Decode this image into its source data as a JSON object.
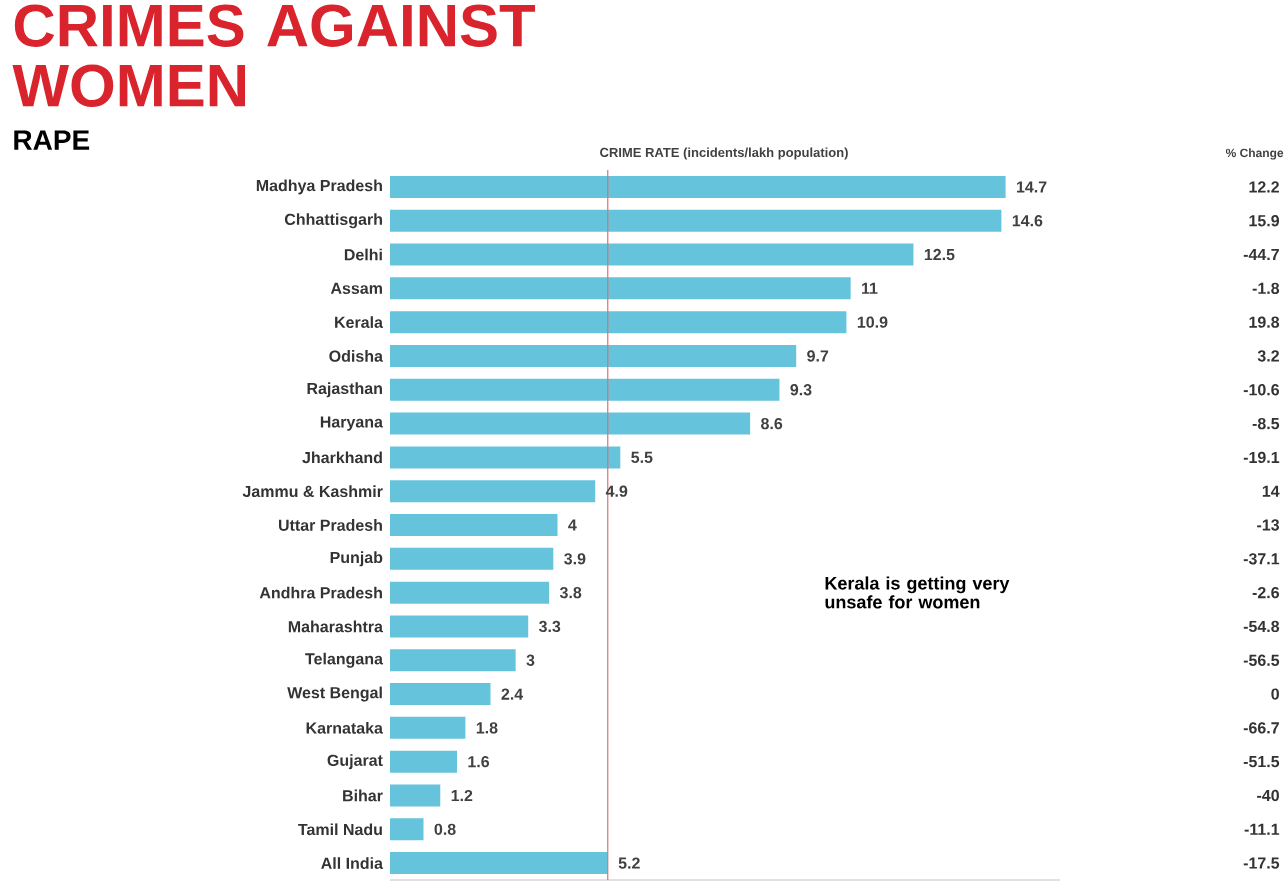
{
  "chart_data": {
    "type": "bar",
    "orientation": "horizontal",
    "title": "CRIMES AGAINST WOMEN",
    "subtitle": "RAPE",
    "xlabel": "CRIME RATE (incidents/lakh population)",
    "categories": [
      "Madhya Pradesh",
      "Chhattisgarh",
      "Delhi",
      "Assam",
      "Kerala",
      "Odisha",
      "Rajasthan",
      "Haryana",
      "Jharkhand",
      "Jammu & Kashmir",
      "Uttar Pradesh",
      "Punjab",
      "Andhra Pradesh",
      "Maharashtra",
      "Telangana",
      "West Bengal",
      "Karnataka",
      "Gujarat",
      "Bihar",
      "Tamil Nadu",
      "All India"
    ],
    "values": [
      14.7,
      14.6,
      12.5,
      11,
      10.9,
      9.7,
      9.3,
      8.6,
      5.5,
      4.9,
      4,
      3.9,
      3.8,
      3.3,
      3,
      2.4,
      1.8,
      1.6,
      1.2,
      0.8,
      5.2
    ],
    "color": "#66c3dc",
    "data_labels": true,
    "xlim": [
      0,
      16
    ],
    "tick_labels": "y",
    "ref_lines": [
      {
        "axis": "x",
        "value": 5.2,
        "color": "#e07070"
      }
    ],
    "annotations": [
      "% Change",
      "12.2",
      "15.9",
      "-44.7",
      "-1.8",
      "19.8",
      "3.2",
      "-10.6",
      "-8.5",
      "-19.1",
      "14",
      "-13",
      "-37.1",
      "-2.6",
      "-54.8",
      "-56.5",
      "0",
      "-66.7",
      "-51.5",
      "-40",
      "-11.1",
      "-17.5",
      "Kerala is getting very unsafe for women"
    ]
  }
}
